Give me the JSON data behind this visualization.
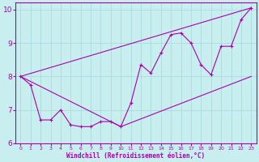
{
  "xlabel": "Windchill (Refroidissement éolien,°C)",
  "bg_color": "#c8eef0",
  "line_color": "#aa00aa",
  "grid_color": "#aadddd",
  "xlim": [
    -0.5,
    23.5
  ],
  "ylim": [
    6,
    10.2
  ],
  "xticks": [
    0,
    1,
    2,
    3,
    4,
    5,
    6,
    7,
    8,
    9,
    10,
    11,
    12,
    13,
    14,
    15,
    16,
    17,
    18,
    19,
    20,
    21,
    22,
    23
  ],
  "yticks": [
    6,
    7,
    8,
    9,
    10
  ],
  "series1": [
    [
      0,
      8.0
    ],
    [
      1,
      7.75
    ],
    [
      2,
      6.7
    ],
    [
      3,
      6.7
    ],
    [
      4,
      7.0
    ],
    [
      5,
      6.55
    ],
    [
      6,
      6.5
    ],
    [
      7,
      6.5
    ],
    [
      8,
      6.65
    ],
    [
      9,
      6.65
    ],
    [
      10,
      6.5
    ],
    [
      11,
      7.2
    ],
    [
      12,
      8.35
    ],
    [
      13,
      8.1
    ],
    [
      14,
      8.7
    ],
    [
      15,
      9.25
    ],
    [
      16,
      9.3
    ],
    [
      17,
      9.0
    ],
    [
      18,
      8.35
    ],
    [
      19,
      8.05
    ],
    [
      20,
      8.9
    ],
    [
      21,
      8.9
    ],
    [
      22,
      9.7
    ],
    [
      23,
      10.05
    ]
  ],
  "series2": [
    [
      0,
      8.0
    ],
    [
      23,
      10.05
    ]
  ],
  "series3": [
    [
      0,
      8.0
    ],
    [
      10,
      6.5
    ],
    [
      23,
      8.0
    ]
  ]
}
